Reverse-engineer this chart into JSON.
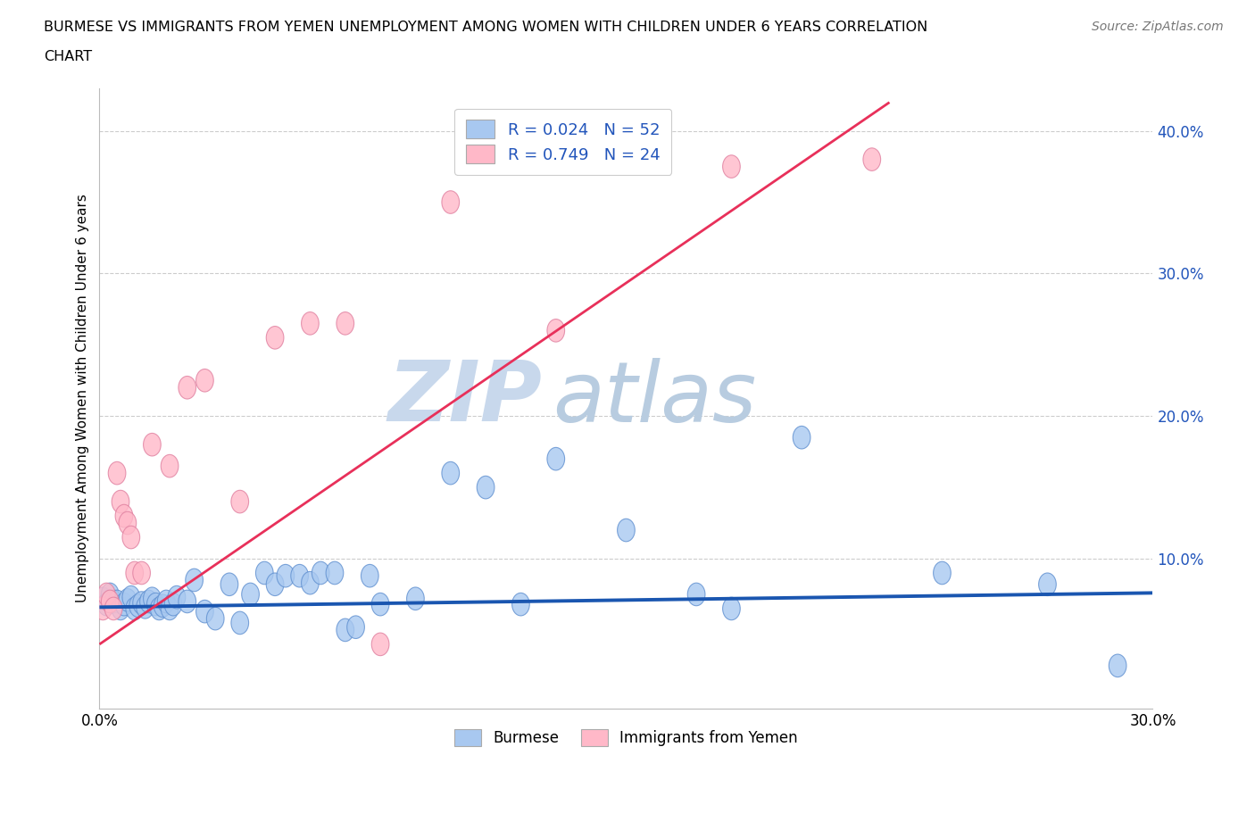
{
  "title_line1": "BURMESE VS IMMIGRANTS FROM YEMEN UNEMPLOYMENT AMONG WOMEN WITH CHILDREN UNDER 6 YEARS CORRELATION",
  "title_line2": "CHART",
  "source": "Source: ZipAtlas.com",
  "ylabel": "Unemployment Among Women with Children Under 6 years",
  "xlim": [
    0,
    0.3
  ],
  "ylim": [
    -0.005,
    0.43
  ],
  "burmese_R": 0.024,
  "burmese_N": 52,
  "yemen_R": 0.749,
  "yemen_N": 24,
  "burmese_color": "#a8c8f0",
  "burmese_edge_color": "#6090d0",
  "burmese_line_color": "#1a56b0",
  "yemen_color": "#ffb8c8",
  "yemen_edge_color": "#e080a0",
  "yemen_line_color": "#e8305a",
  "watermark_zip": "ZIP",
  "watermark_atlas": "atlas",
  "watermark_color": "#dce8f5",
  "burmese_x": [
    0.001,
    0.002,
    0.003,
    0.004,
    0.005,
    0.006,
    0.007,
    0.008,
    0.009,
    0.01,
    0.011,
    0.012,
    0.013,
    0.014,
    0.015,
    0.016,
    0.017,
    0.018,
    0.019,
    0.02,
    0.021,
    0.022,
    0.025,
    0.027,
    0.03,
    0.033,
    0.037,
    0.04,
    0.043,
    0.047,
    0.05,
    0.053,
    0.057,
    0.06,
    0.063,
    0.067,
    0.07,
    0.073,
    0.077,
    0.08,
    0.09,
    0.1,
    0.11,
    0.12,
    0.13,
    0.15,
    0.17,
    0.18,
    0.2,
    0.24,
    0.27,
    0.29
  ],
  "burmese_y": [
    0.072,
    0.068,
    0.075,
    0.07,
    0.07,
    0.065,
    0.068,
    0.071,
    0.073,
    0.065,
    0.067,
    0.069,
    0.066,
    0.07,
    0.072,
    0.068,
    0.065,
    0.067,
    0.07,
    0.065,
    0.068,
    0.073,
    0.07,
    0.085,
    0.063,
    0.058,
    0.082,
    0.055,
    0.075,
    0.09,
    0.082,
    0.088,
    0.088,
    0.083,
    0.09,
    0.09,
    0.05,
    0.052,
    0.088,
    0.068,
    0.072,
    0.16,
    0.15,
    0.068,
    0.17,
    0.12,
    0.075,
    0.065,
    0.185,
    0.09,
    0.082,
    0.025
  ],
  "yemen_x": [
    0.001,
    0.002,
    0.003,
    0.004,
    0.005,
    0.006,
    0.007,
    0.008,
    0.009,
    0.01,
    0.012,
    0.015,
    0.02,
    0.025,
    0.03,
    0.04,
    0.05,
    0.06,
    0.07,
    0.08,
    0.1,
    0.13,
    0.18,
    0.22
  ],
  "yemen_y": [
    0.065,
    0.075,
    0.07,
    0.065,
    0.16,
    0.14,
    0.13,
    0.125,
    0.115,
    0.09,
    0.09,
    0.18,
    0.165,
    0.22,
    0.225,
    0.14,
    0.255,
    0.265,
    0.265,
    0.04,
    0.35,
    0.26,
    0.375,
    0.38
  ],
  "burmese_line_x": [
    0.0,
    0.3
  ],
  "burmese_line_y": [
    0.066,
    0.076
  ],
  "yemen_line_x": [
    0.0,
    0.225
  ],
  "yemen_line_y": [
    0.04,
    0.42
  ]
}
